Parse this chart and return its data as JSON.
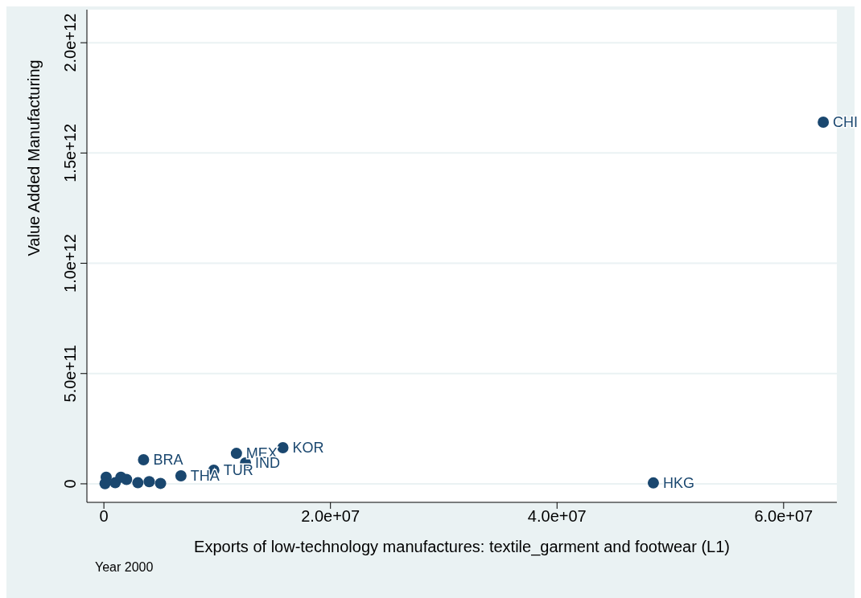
{
  "chart_data": {
    "type": "scatter",
    "xlabel": "Exports of low-technology manufactures: textile_garment and footwear   (L1)",
    "ylabel": "Value Added Manufacturing",
    "annotations": [
      "Year 2000"
    ],
    "x": [
      63500000,
      48500000,
      15800000,
      11700000,
      12500000,
      3500000,
      9700000,
      6800000,
      200000,
      1000000,
      2000000,
      3000000,
      5000000,
      100000,
      1500000,
      4000000
    ],
    "values": [
      1640000000000,
      4000000000,
      164000000000,
      138000000000,
      95000000000,
      109000000000,
      62000000000,
      36000000000,
      30000000000,
      5000000000,
      20000000000,
      5000000000,
      2000000000,
      1000000000,
      30000000000,
      10000000000
    ],
    "value_labels": [
      "CHI",
      "HKG",
      "KOR",
      "MEX",
      "IND",
      "BRA",
      "TUR",
      "THA",
      null,
      null,
      null,
      null,
      null,
      null,
      null,
      null
    ],
    "color": "#1a476f",
    "marker": "circle",
    "grid": "y",
    "xlim": [
      -1500000,
      64700000
    ],
    "xticks": [
      0,
      {
        "value": 20000000,
        "label": "2.0e+07"
      },
      {
        "value": 40000000,
        "label": "4.0e+07"
      },
      {
        "value": 60000000,
        "label": "6.0e+07"
      }
    ],
    "ylim": [
      -84000000000,
      2150000000000
    ],
    "yticks": [
      0,
      {
        "value": 500000000000,
        "label": "5.0e+11"
      },
      {
        "value": 1000000000000,
        "label": "1.0e+12"
      },
      {
        "value": 1500000000000,
        "label": "1.5e+12"
      },
      {
        "value": 2000000000000,
        "label": "2.0e+12"
      }
    ]
  }
}
